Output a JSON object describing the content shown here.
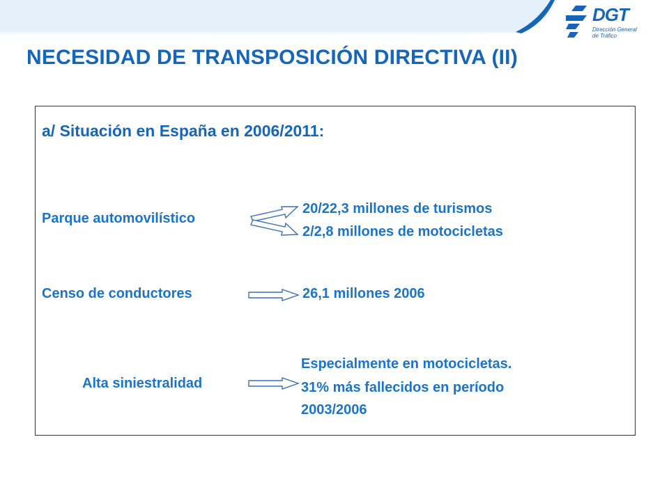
{
  "header": {
    "logo": {
      "brand": "DGT",
      "subtitle_line1": "Dirección General",
      "subtitle_line2": "de Tráfico"
    },
    "title": "NECESIDAD DE TRANSPOSICIÓN DIRECTIVA (II)"
  },
  "content": {
    "heading": "a/ Situación en España en 2006/2011:",
    "rows": [
      {
        "label": "Parque automovilístico",
        "values": [
          "20/22,3 millones de turismos",
          "2/2,8 millones de motocicletas"
        ]
      },
      {
        "label": "Censo de conductores",
        "values": [
          "26,1 millones 2006"
        ]
      },
      {
        "label": "Alta siniestralidad",
        "values": [
          "Especialmente en motocicletas.",
          "31% más fallecidos en período",
          "2003/2006"
        ]
      }
    ]
  },
  "colors": {
    "title": "#1565b8",
    "text": "#1a75c9",
    "banner_light": "#dcecf8",
    "banner_dark": "#1565b8",
    "border": "#333333"
  }
}
